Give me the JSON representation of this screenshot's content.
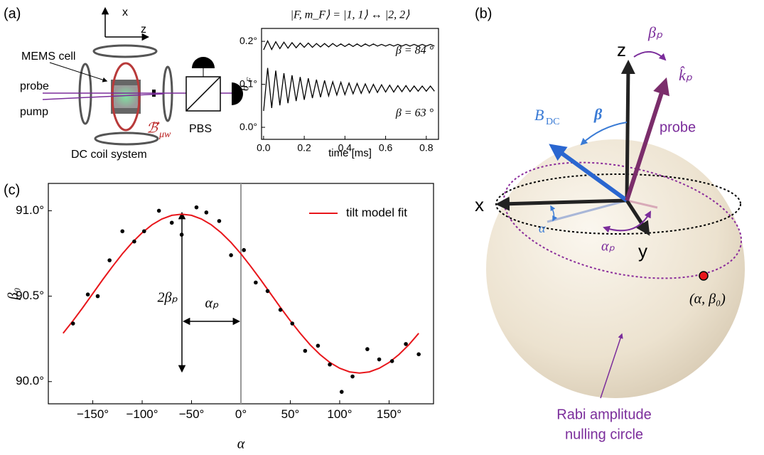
{
  "panel_labels": [
    "(a)",
    "(b)",
    "(c)"
  ],
  "setup": {
    "axis_x": "x",
    "axis_z": "z",
    "mems_cell": "MEMS cell",
    "probe": "probe",
    "pump": "pump",
    "field": "ℬ⃗",
    "field_sub": "μw",
    "pbs": "PBS",
    "coils": "DC coil system"
  },
  "sphere": {
    "axis_z": "z",
    "axis_x": "x",
    "axis_y": "y",
    "beta_p": "βₚ",
    "k_p": "k̂ₚ",
    "probe": "probe",
    "b_dc": "B⃗",
    "b_dc_sub": "DC",
    "beta": "β",
    "alpha": "α",
    "alpha_p": "αₚ",
    "point": "(α, β₀)",
    "circle_line1": "Rabi amplitude",
    "circle_line2": "nulling circle"
  },
  "chart_data": [
    {
      "type": "line",
      "title": "|F, m_F⟩ = |1, 1⟩ ↔ |2, 2⟩",
      "xlabel": "time [ms]",
      "ylabel": "θ",
      "ylabel_sub": "F",
      "annotations": [
        "β = 84 °",
        "β = 63 °"
      ],
      "x": [
        0,
        0.02,
        0.04,
        0.06,
        0.08,
        0.1,
        0.12,
        0.14,
        0.16,
        0.18,
        0.2,
        0.22,
        0.24,
        0.26,
        0.28,
        0.3,
        0.32,
        0.34,
        0.36,
        0.38,
        0.4,
        0.42,
        0.44,
        0.46,
        0.48,
        0.5,
        0.52,
        0.54,
        0.56,
        0.58,
        0.6,
        0.62,
        0.64,
        0.66,
        0.68,
        0.7,
        0.72,
        0.74,
        0.76,
        0.78,
        0.8,
        0.82,
        0.84
      ],
      "series": [
        {
          "color": "#000000",
          "values": [
            0.18,
            0.201,
            0.181,
            0.199,
            0.183,
            0.198,
            0.184,
            0.197,
            0.185,
            0.196,
            0.186,
            0.196,
            0.186,
            0.195,
            0.187,
            0.195,
            0.187,
            0.195,
            0.188,
            0.194,
            0.188,
            0.194,
            0.188,
            0.194,
            0.188,
            0.194,
            0.189,
            0.194,
            0.189,
            0.193,
            0.189,
            0.193,
            0.189,
            0.193,
            0.189,
            0.193,
            0.189,
            0.193,
            0.189,
            0.193,
            0.189,
            0.193,
            0.189
          ]
        },
        {
          "color": "#000000",
          "values": [
            0.038,
            0.138,
            0.045,
            0.132,
            0.051,
            0.126,
            0.056,
            0.121,
            0.061,
            0.117,
            0.064,
            0.114,
            0.068,
            0.111,
            0.07,
            0.109,
            0.073,
            0.106,
            0.075,
            0.105,
            0.076,
            0.103,
            0.078,
            0.102,
            0.079,
            0.101,
            0.08,
            0.1,
            0.081,
            0.099,
            0.082,
            0.098,
            0.082,
            0.097,
            0.083,
            0.097,
            0.083,
            0.096,
            0.084,
            0.096,
            0.084,
            0.096,
            0.084
          ]
        }
      ],
      "xlim": [
        -0.01,
        0.86
      ],
      "ylim": [
        -0.028,
        0.23
      ],
      "xticks": [
        {
          "value": 0,
          "label": "0.0"
        },
        0.2,
        0.4,
        0.6,
        0.8
      ],
      "yticks": [
        {
          "value": 0,
          "label": "0.0°"
        },
        {
          "value": 0.1,
          "label": "0.1°"
        },
        {
          "value": 0.2,
          "label": "0.2°"
        }
      ]
    },
    {
      "type": "scatter",
      "xlabel": "α",
      "ylabel": "β₀",
      "annotations": [
        "2βₚ",
        "αₚ"
      ],
      "vline": 0,
      "points": {
        "color": "#000000",
        "x": [
          -170,
          -155,
          -145,
          -133,
          -120,
          -108,
          -98,
          -83,
          -70,
          -60,
          -45,
          -35,
          -22,
          -10,
          3,
          15,
          27,
          40,
          52,
          65,
          78,
          90,
          102,
          113,
          128,
          140,
          153,
          167,
          180
        ],
        "values": [
          90.34,
          90.51,
          90.5,
          90.71,
          90.88,
          90.82,
          90.88,
          91.0,
          90.93,
          90.86,
          91.02,
          90.99,
          90.94,
          90.74,
          90.77,
          90.58,
          90.53,
          90.42,
          90.34,
          90.18,
          90.21,
          90.1,
          89.94,
          90.03,
          90.19,
          90.13,
          90.12,
          90.22,
          90.16
        ]
      },
      "series": [
        {
          "name": "tilt model fit",
          "color": "#e8161b",
          "x": [
            -180,
            -170,
            -160,
            -150,
            -140,
            -130,
            -120,
            -110,
            -100,
            -90,
            -80,
            -70,
            -60,
            -50,
            -40,
            -30,
            -20,
            -10,
            0,
            10,
            20,
            30,
            40,
            50,
            60,
            70,
            80,
            90,
            100,
            110,
            120,
            130,
            140,
            150,
            160,
            170,
            180
          ],
          "values": [
            90.283,
            90.356,
            90.434,
            90.515,
            90.596,
            90.674,
            90.748,
            90.814,
            90.871,
            90.918,
            90.952,
            90.973,
            90.98,
            90.973,
            90.952,
            90.918,
            90.871,
            90.814,
            90.748,
            90.674,
            90.596,
            90.515,
            90.434,
            90.356,
            90.283,
            90.216,
            90.159,
            90.112,
            90.078,
            90.057,
            90.05,
            90.057,
            90.078,
            90.112,
            90.159,
            90.216,
            90.283
          ]
        }
      ],
      "xlim": [
        -195,
        195
      ],
      "ylim": [
        89.87,
        91.16
      ],
      "xticks": [
        {
          "value": -150,
          "label": "−150°"
        },
        {
          "value": -100,
          "label": "−100°"
        },
        {
          "value": -50,
          "label": "−50°"
        },
        {
          "value": 0,
          "label": "0°"
        },
        {
          "value": 50,
          "label": "50°"
        },
        {
          "value": 100,
          "label": "100°"
        },
        {
          "value": 150,
          "label": "150°"
        }
      ],
      "yticks": [
        {
          "value": 90,
          "label": "90.0°"
        },
        {
          "value": 90.5,
          "label": "90.5°"
        },
        {
          "value": 91,
          "label": "91.0°"
        }
      ],
      "legend": "upper right"
    }
  ]
}
